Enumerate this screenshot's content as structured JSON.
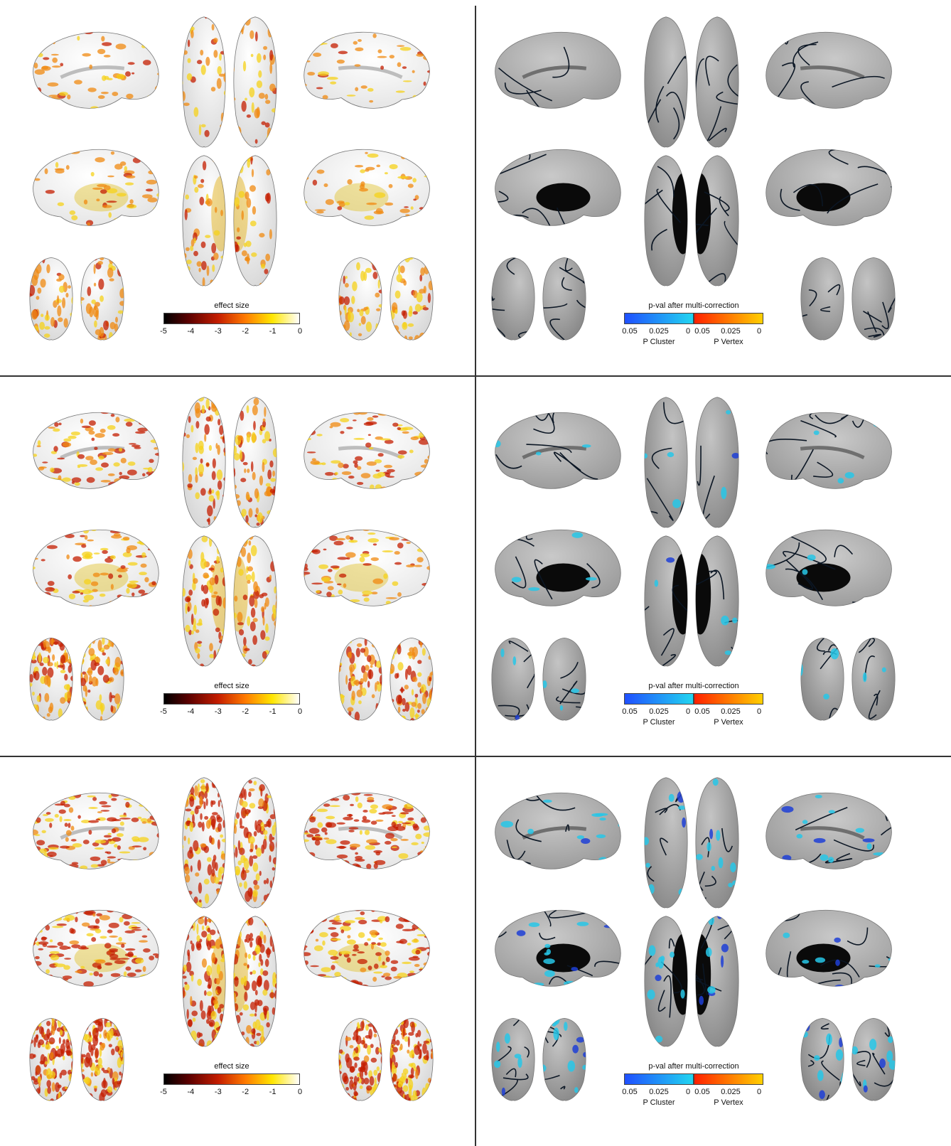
{
  "colors": {
    "surface": "#e6e6e6",
    "surface_dark": "#8f8f8f",
    "heat_low": "#f5d21a",
    "heat_high": "#c41d00",
    "cluster": "#27c7e8",
    "cluster_dark": "#1f3fd6",
    "outline": "#0b1624"
  },
  "rows": [
    {
      "effect_colorbar": {
        "title": "effect size",
        "ticks": [
          "-5",
          "-4",
          "-3",
          "-2",
          "-1",
          "0"
        ]
      },
      "pval_colorbar": {
        "title": "p-val after multi-correction",
        "ticks_cluster": [
          "0.05",
          "0.025",
          "0"
        ],
        "ticks_vertex": [
          "0.05",
          "0.025",
          "0"
        ],
        "label_cluster": "P Cluster",
        "label_vertex": "P Vertex"
      },
      "heat_density": 0.2,
      "cluster_density": 0
    },
    {
      "effect_colorbar": {
        "title": "effect size",
        "ticks": [
          "-5",
          "-4",
          "-3",
          "-2",
          "-1",
          "0"
        ]
      },
      "pval_colorbar": {
        "title": "p-val after multi-correction",
        "ticks_cluster": [
          "0.05",
          "0.025",
          "0"
        ],
        "ticks_vertex": [
          "0.05",
          "0.025",
          "0"
        ],
        "label_cluster": "P Cluster",
        "label_vertex": "P Vertex"
      },
      "heat_density": 0.5,
      "cluster_density": 0.15
    },
    {
      "effect_colorbar": {
        "title": "effect size",
        "ticks": [
          "-5",
          "-4",
          "-3",
          "-2",
          "-1",
          "0"
        ]
      },
      "pval_colorbar": {
        "title": "p-val after multi-correction",
        "ticks_cluster": [
          "0.05",
          "0.025",
          "0"
        ],
        "ticks_vertex": [
          "0.05",
          "0.025",
          "0"
        ],
        "label_cluster": "P Cluster",
        "label_vertex": "P Vertex"
      },
      "heat_density": 0.9,
      "cluster_density": 0.6
    }
  ]
}
